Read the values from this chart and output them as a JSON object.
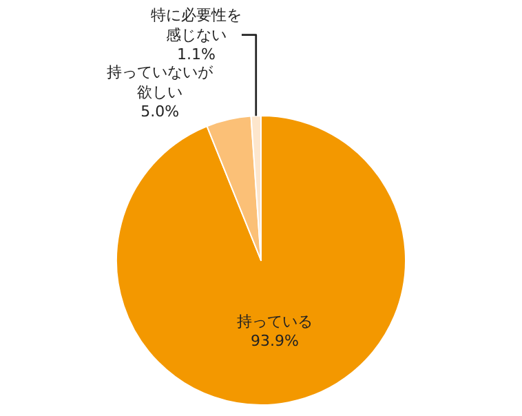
{
  "chart_data": {
    "type": "pie",
    "categories": [
      "持っている",
      "持っていないが欲しい",
      "特に必要性を感じない"
    ],
    "values": [
      93.9,
      5.0,
      1.1
    ],
    "colors": [
      "#f39800",
      "#fbc077",
      "#fde6cc"
    ],
    "value_labels": [
      "93.9%",
      "5.0%",
      "1.1%"
    ],
    "legend": false
  }
}
